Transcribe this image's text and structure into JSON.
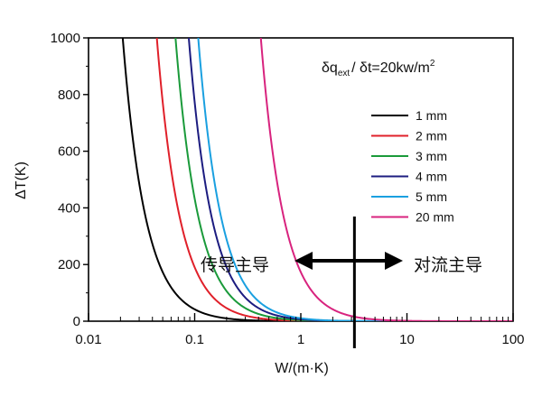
{
  "chart_data": {
    "type": "line",
    "xlabel": "W/(m·K)",
    "ylabel": "ΔT(K)",
    "xscale": "log",
    "xlim": [
      0.01,
      100
    ],
    "ylim": [
      0,
      1000
    ],
    "x_ticks": [
      0.01,
      0.1,
      1,
      10,
      100
    ],
    "x_tick_labels": [
      "0.01",
      "0.1",
      "1",
      "10",
      "100"
    ],
    "y_ticks": [
      0,
      200,
      400,
      600,
      800,
      1000
    ],
    "y_tick_labels": [
      "0",
      "200",
      "400",
      "600",
      "800",
      "1000"
    ],
    "grid": false,
    "legend_position": "right",
    "formula": {
      "a": "δq",
      "sub": "ext",
      "b": "/ δt=20kw/m",
      "sup": "2"
    },
    "series": [
      {
        "name": "1 mm",
        "color": "#000000",
        "x_at_1000": 0.021,
        "decay_per_decade": 0.0135
      },
      {
        "name": "2 mm",
        "color": "#e0202a",
        "x_at_1000": 0.044,
        "decay_per_decade": 0.0135
      },
      {
        "name": "3 mm",
        "color": "#1a9a3a",
        "x_at_1000": 0.066,
        "decay_per_decade": 0.0135
      },
      {
        "name": "4 mm",
        "color": "#1c1c80",
        "x_at_1000": 0.088,
        "decay_per_decade": 0.0135
      },
      {
        "name": "5 mm",
        "color": "#1aa0e0",
        "x_at_1000": 0.108,
        "decay_per_decade": 0.0135
      },
      {
        "name": "20 mm",
        "color": "#d8237e",
        "x_at_1000": 0.42,
        "decay_per_decade": 0.0135
      }
    ],
    "annotations": {
      "left": "传导主导",
      "right": "对流主导",
      "divider_x": 3.2
    }
  }
}
